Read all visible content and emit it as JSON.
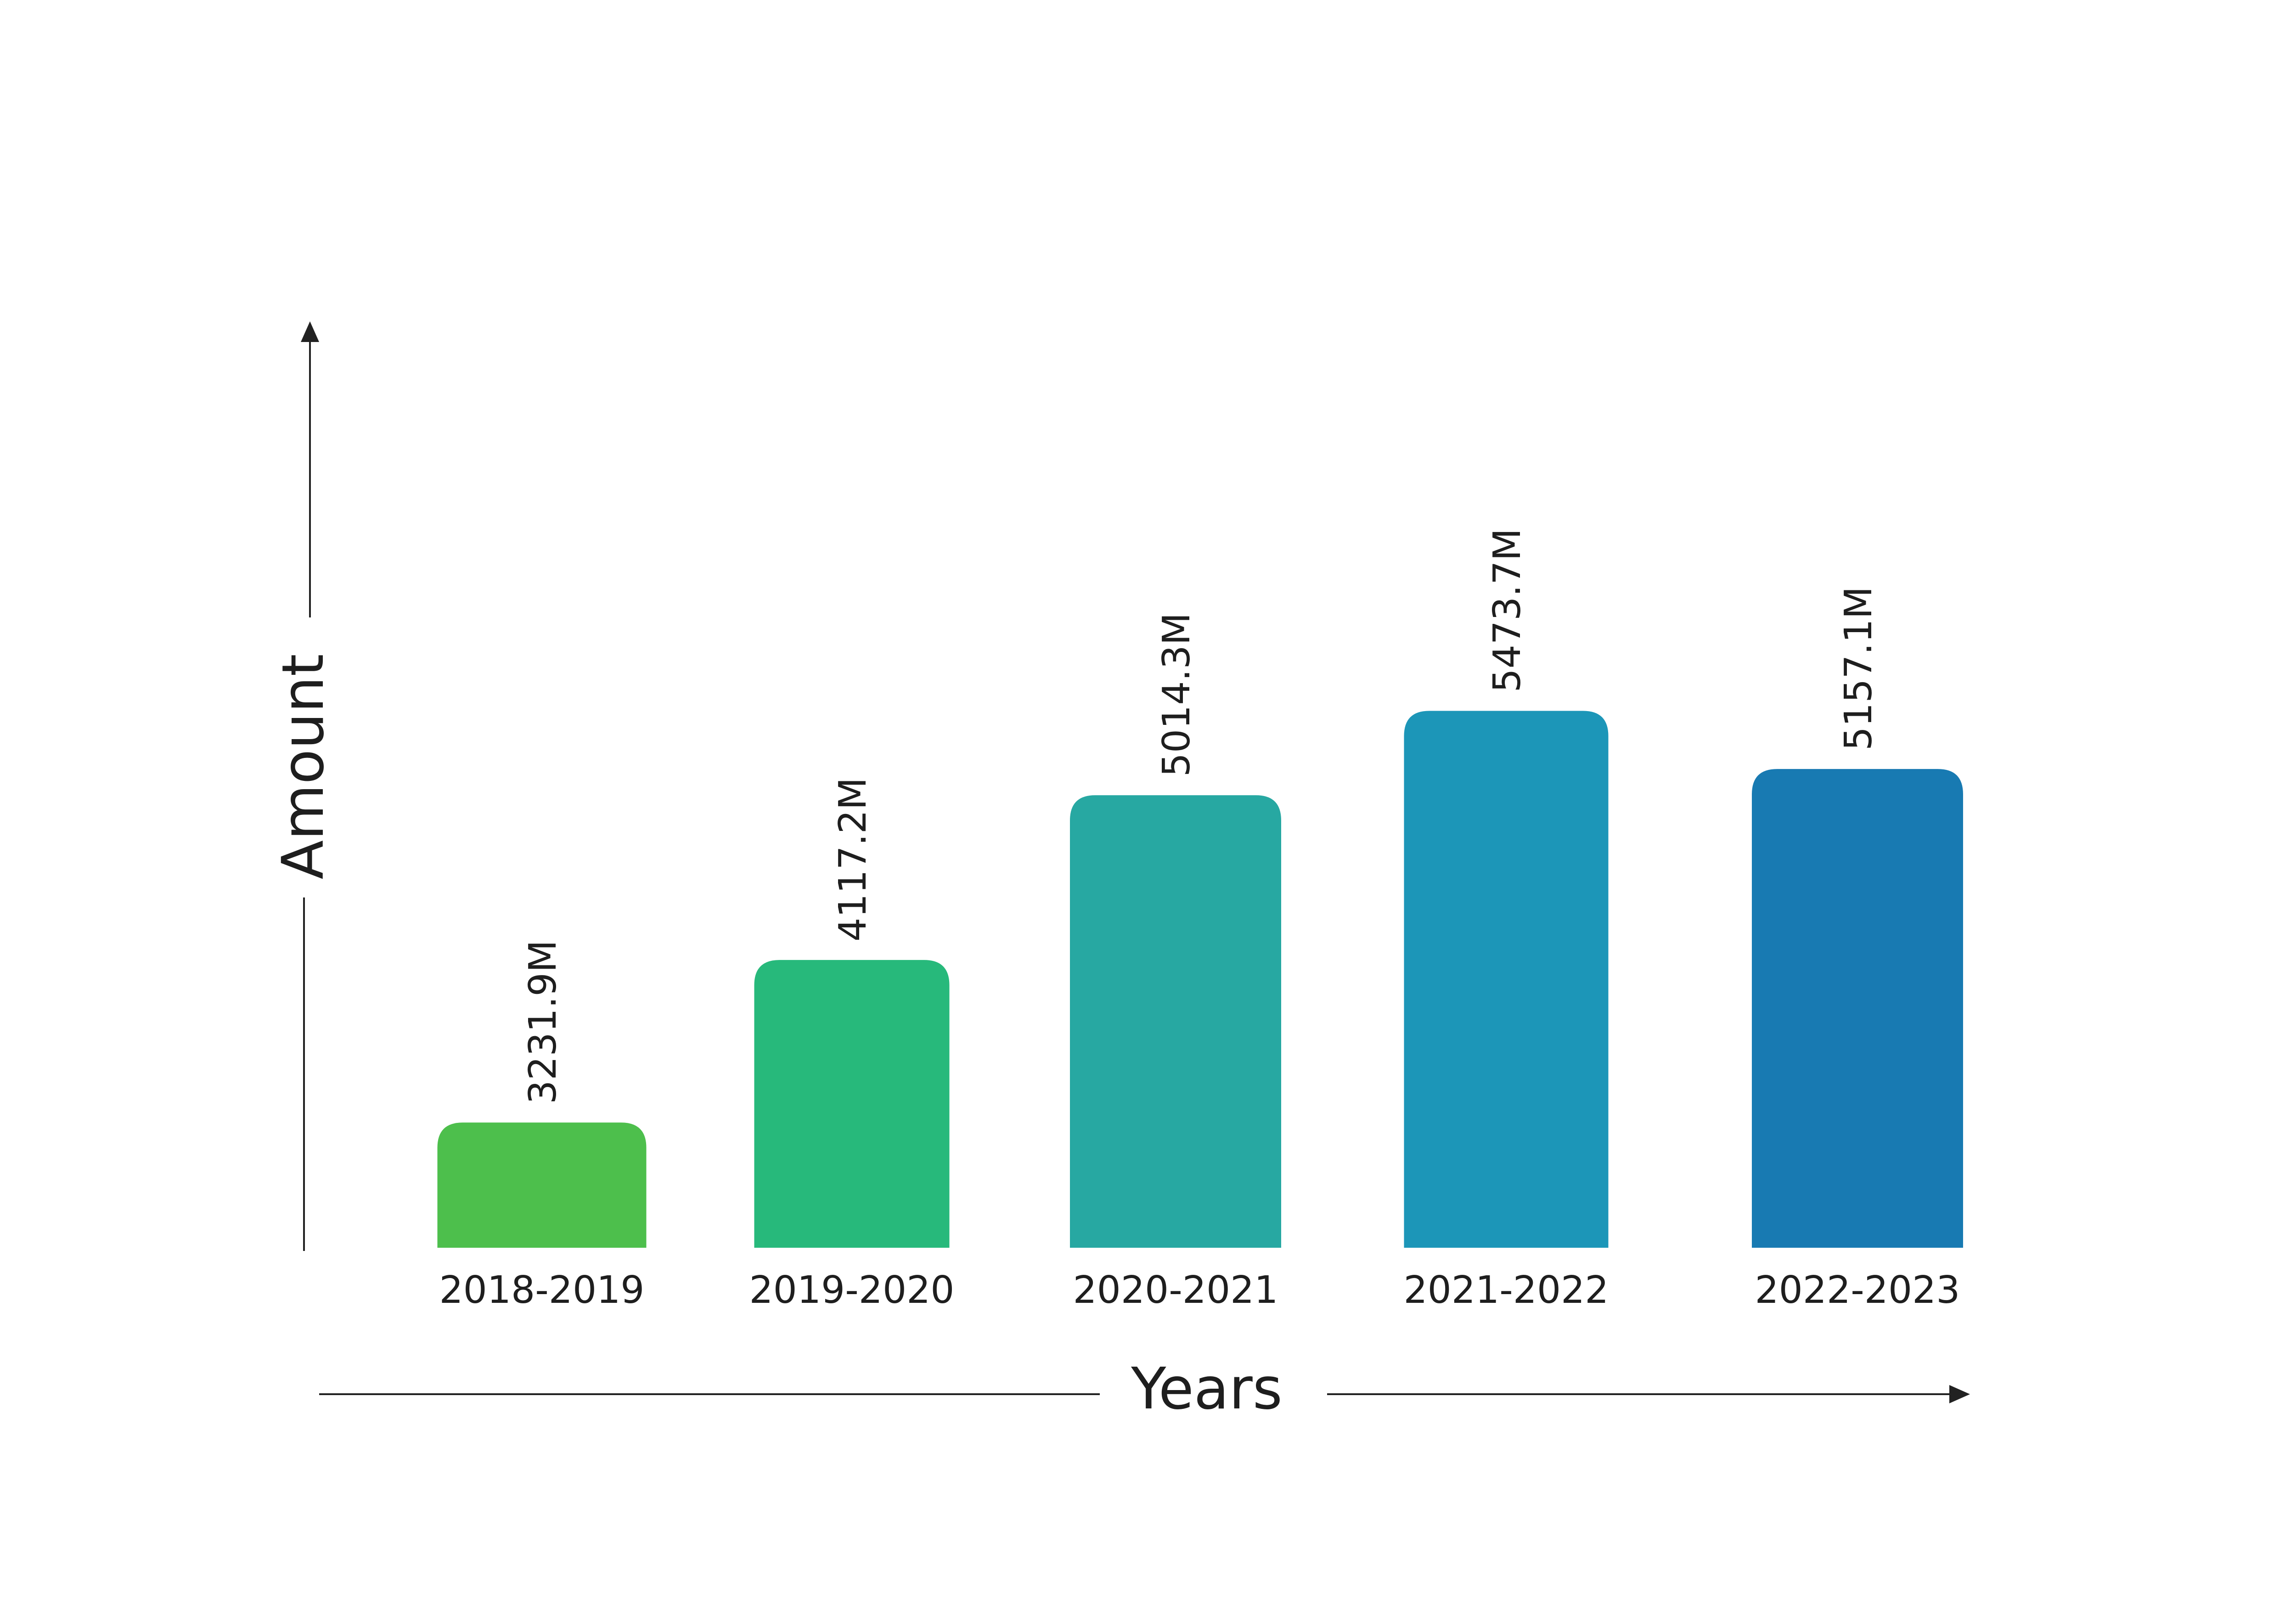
{
  "chart_data": {
    "type": "bar",
    "title": "",
    "xlabel": "Years",
    "ylabel": "Amount",
    "categories": [
      "2018-2019",
      "2019-2020",
      "2020-2021",
      "2021-2022",
      "2022-2023"
    ],
    "values": [
      3231.9,
      4117.2,
      5014.3,
      5473.7,
      5157.1
    ],
    "value_labels": [
      "3231.9M",
      "4117.2M",
      "5014.3M",
      "5473.7M",
      "5157.1M"
    ],
    "bar_colors": [
      "#4dbf4c",
      "#27b97b",
      "#27a8a2",
      "#1c96b8",
      "#187ab2"
    ],
    "axis_color": "#222222",
    "text_color": "#1e1e1e",
    "ylim": [
      2550,
      5950
    ],
    "grid": false,
    "legend": "none"
  }
}
